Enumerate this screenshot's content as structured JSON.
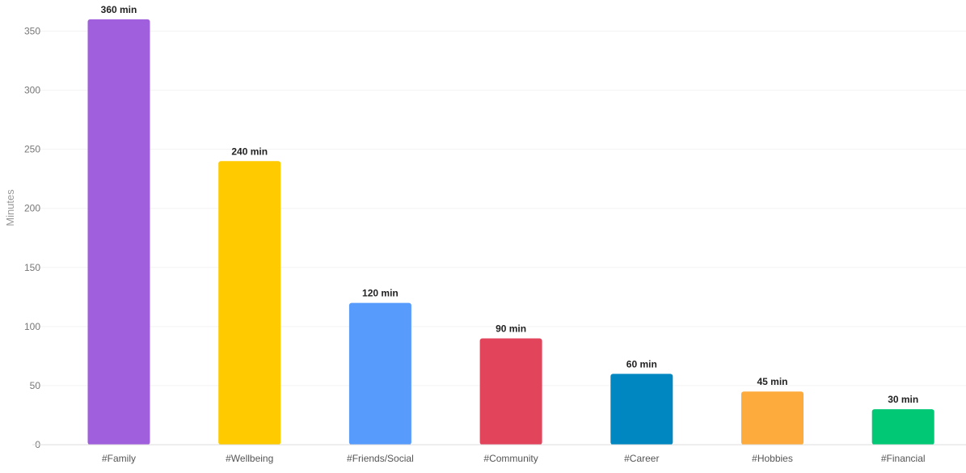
{
  "chart_data": {
    "type": "bar",
    "title": "",
    "xlabel": "",
    "ylabel": "Minutes",
    "ylim": [
      0,
      360
    ],
    "yticks": [
      0,
      50,
      100,
      150,
      200,
      250,
      300,
      350
    ],
    "grid": true,
    "categories": [
      "#Family",
      "#Wellbeing",
      "#Friends/Social",
      "#Community",
      "#Career",
      "#Hobbies",
      "#Financial"
    ],
    "values": [
      360,
      240,
      120,
      90,
      60,
      45,
      30
    ],
    "data_labels": [
      "360 min",
      "240 min",
      "120 min",
      "90 min",
      "60 min",
      "45 min",
      "30 min"
    ],
    "colors": [
      "#a05fdc",
      "#ffcb00",
      "#579bfc",
      "#e2445c",
      "#0086c0",
      "#fdab3d",
      "#00c875"
    ]
  }
}
